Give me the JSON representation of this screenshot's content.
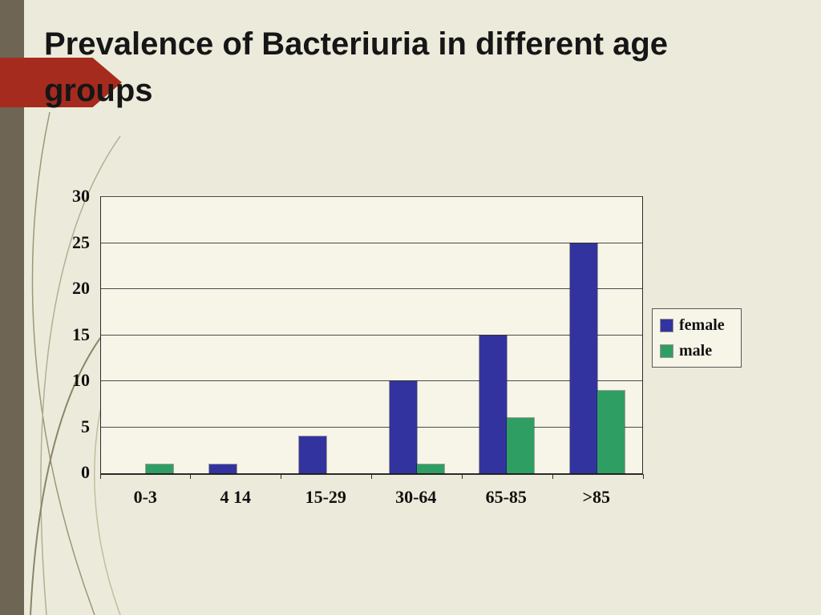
{
  "slide": {
    "title": "Prevalence of Bacteriuria in different age groups",
    "background_color": "#ecebdb",
    "stripe_color": "#6e6555",
    "arrow_color": "#a62b1f"
  },
  "chart_data": {
    "type": "bar",
    "title": "",
    "xlabel": "",
    "ylabel": "",
    "categories": [
      "0-3",
      "4 14",
      "15-29",
      "30-64",
      "65-85",
      ">85"
    ],
    "series": [
      {
        "name": "female",
        "color": "#3333a0",
        "values": [
          0,
          1,
          4,
          10,
          15,
          25
        ]
      },
      {
        "name": "male",
        "color": "#2f9e63",
        "values": [
          1,
          0,
          0,
          1,
          6,
          9
        ]
      }
    ],
    "ylim": [
      0,
      30
    ],
    "yticks": [
      0,
      5,
      10,
      15,
      20,
      25,
      30
    ],
    "grid": true,
    "legend_position": "right"
  }
}
